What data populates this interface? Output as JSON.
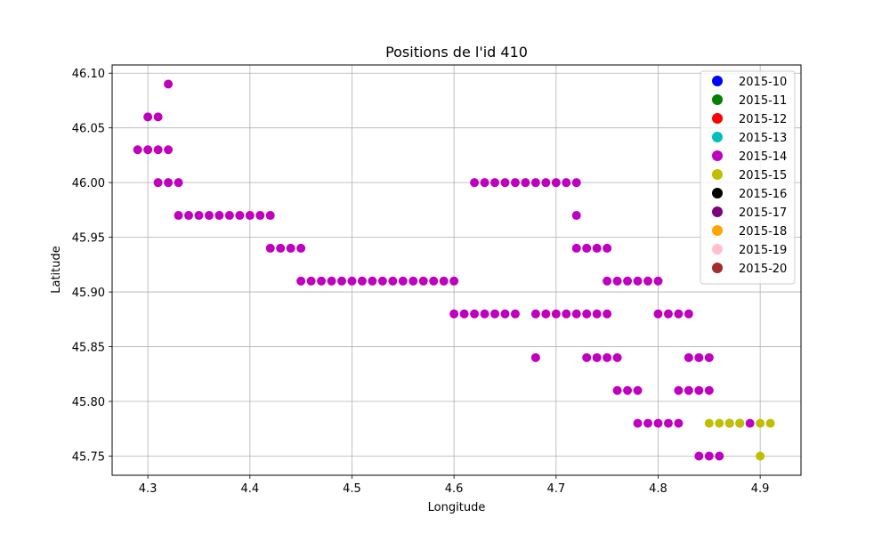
{
  "chart_data": {
    "type": "scatter",
    "title": "Positions de l'id 410",
    "xlabel": "Longitude",
    "ylabel": "Latitude",
    "xlim": [
      4.265,
      4.94
    ],
    "ylim": [
      45.7325,
      46.1075
    ],
    "xticks": [
      4.3,
      4.4,
      4.5,
      4.6,
      4.7,
      4.8,
      4.9
    ],
    "yticks": [
      45.75,
      45.8,
      45.85,
      45.9,
      45.95,
      46.0,
      46.05,
      46.1
    ],
    "xtick_labels": [
      "4.3",
      "4.4",
      "4.5",
      "4.6",
      "4.7",
      "4.8",
      "4.9"
    ],
    "ytick_labels": [
      "45.75",
      "45.80",
      "45.85",
      "45.90",
      "45.95",
      "46.00",
      "46.05",
      "46.10"
    ],
    "grid": true,
    "legend_position": "top-right",
    "series": [
      {
        "name": "2015-10",
        "color": "#0000ff",
        "points": []
      },
      {
        "name": "2015-11",
        "color": "#008000",
        "points": []
      },
      {
        "name": "2015-12",
        "color": "#ff0000",
        "points": []
      },
      {
        "name": "2015-13",
        "color": "#00bfbf",
        "points": []
      },
      {
        "name": "2015-14",
        "color": "#bf00bf",
        "points": [
          [
            4.32,
            46.09
          ],
          [
            4.3,
            46.06
          ],
          [
            4.31,
            46.06
          ],
          [
            4.29,
            46.03
          ],
          [
            4.3,
            46.03
          ],
          [
            4.31,
            46.03
          ],
          [
            4.32,
            46.03
          ],
          [
            4.31,
            46.0
          ],
          [
            4.32,
            46.0
          ],
          [
            4.33,
            46.0
          ],
          [
            4.33,
            45.97
          ],
          [
            4.34,
            45.97
          ],
          [
            4.35,
            45.97
          ],
          [
            4.36,
            45.97
          ],
          [
            4.37,
            45.97
          ],
          [
            4.38,
            45.97
          ],
          [
            4.39,
            45.97
          ],
          [
            4.4,
            45.97
          ],
          [
            4.41,
            45.97
          ],
          [
            4.42,
            45.97
          ],
          [
            4.42,
            45.94
          ],
          [
            4.43,
            45.94
          ],
          [
            4.44,
            45.94
          ],
          [
            4.45,
            45.94
          ],
          [
            4.45,
            45.91
          ],
          [
            4.46,
            45.91
          ],
          [
            4.47,
            45.91
          ],
          [
            4.48,
            45.91
          ],
          [
            4.49,
            45.91
          ],
          [
            4.5,
            45.91
          ],
          [
            4.51,
            45.91
          ],
          [
            4.52,
            45.91
          ],
          [
            4.53,
            45.91
          ],
          [
            4.54,
            45.91
          ],
          [
            4.55,
            45.91
          ],
          [
            4.56,
            45.91
          ],
          [
            4.57,
            45.91
          ],
          [
            4.58,
            45.91
          ],
          [
            4.59,
            45.91
          ],
          [
            4.6,
            45.91
          ],
          [
            4.6,
            45.88
          ],
          [
            4.61,
            45.88
          ],
          [
            4.62,
            45.88
          ],
          [
            4.63,
            45.88
          ],
          [
            4.64,
            45.88
          ],
          [
            4.65,
            45.88
          ],
          [
            4.66,
            45.88
          ],
          [
            4.62,
            46.0
          ],
          [
            4.63,
            46.0
          ],
          [
            4.64,
            46.0
          ],
          [
            4.65,
            46.0
          ],
          [
            4.66,
            46.0
          ],
          [
            4.67,
            46.0
          ],
          [
            4.68,
            46.0
          ],
          [
            4.69,
            46.0
          ],
          [
            4.7,
            46.0
          ],
          [
            4.71,
            46.0
          ],
          [
            4.72,
            46.0
          ],
          [
            4.72,
            45.97
          ],
          [
            4.72,
            45.94
          ],
          [
            4.73,
            45.94
          ],
          [
            4.74,
            45.94
          ],
          [
            4.75,
            45.94
          ],
          [
            4.68,
            45.88
          ],
          [
            4.69,
            45.88
          ],
          [
            4.7,
            45.88
          ],
          [
            4.71,
            45.88
          ],
          [
            4.72,
            45.88
          ],
          [
            4.73,
            45.88
          ],
          [
            4.74,
            45.88
          ],
          [
            4.75,
            45.88
          ],
          [
            4.68,
            45.84
          ],
          [
            4.75,
            45.91
          ],
          [
            4.76,
            45.91
          ],
          [
            4.77,
            45.91
          ],
          [
            4.78,
            45.91
          ],
          [
            4.79,
            45.91
          ],
          [
            4.8,
            45.91
          ],
          [
            4.8,
            45.88
          ],
          [
            4.81,
            45.88
          ],
          [
            4.82,
            45.88
          ],
          [
            4.83,
            45.88
          ],
          [
            4.73,
            45.84
          ],
          [
            4.74,
            45.84
          ],
          [
            4.75,
            45.84
          ],
          [
            4.76,
            45.84
          ],
          [
            4.76,
            45.81
          ],
          [
            4.77,
            45.81
          ],
          [
            4.78,
            45.81
          ],
          [
            4.78,
            45.78
          ],
          [
            4.79,
            45.78
          ],
          [
            4.8,
            45.78
          ],
          [
            4.81,
            45.78
          ],
          [
            4.82,
            45.78
          ],
          [
            4.83,
            45.84
          ],
          [
            4.84,
            45.84
          ],
          [
            4.85,
            45.84
          ],
          [
            4.82,
            45.81
          ],
          [
            4.83,
            45.81
          ],
          [
            4.84,
            45.81
          ],
          [
            4.85,
            45.81
          ],
          [
            4.87,
            45.78
          ],
          [
            4.88,
            45.78
          ],
          [
            4.89,
            45.78
          ],
          [
            4.84,
            45.75
          ],
          [
            4.85,
            45.75
          ],
          [
            4.86,
            45.75
          ]
        ]
      },
      {
        "name": "2015-15",
        "color": "#bfbf00",
        "points": [
          [
            4.85,
            45.78
          ],
          [
            4.86,
            45.78
          ],
          [
            4.87,
            45.78
          ],
          [
            4.88,
            45.78
          ],
          [
            4.9,
            45.78
          ],
          [
            4.91,
            45.78
          ],
          [
            4.9,
            45.75
          ]
        ]
      },
      {
        "name": "2015-16",
        "color": "#000000",
        "points": []
      },
      {
        "name": "2015-17",
        "color": "#800080",
        "points": []
      },
      {
        "name": "2015-18",
        "color": "#ffa500",
        "points": []
      },
      {
        "name": "2015-19",
        "color": "#ffc0cb",
        "points": []
      },
      {
        "name": "2015-20",
        "color": "#a52a2a",
        "points": []
      }
    ]
  }
}
